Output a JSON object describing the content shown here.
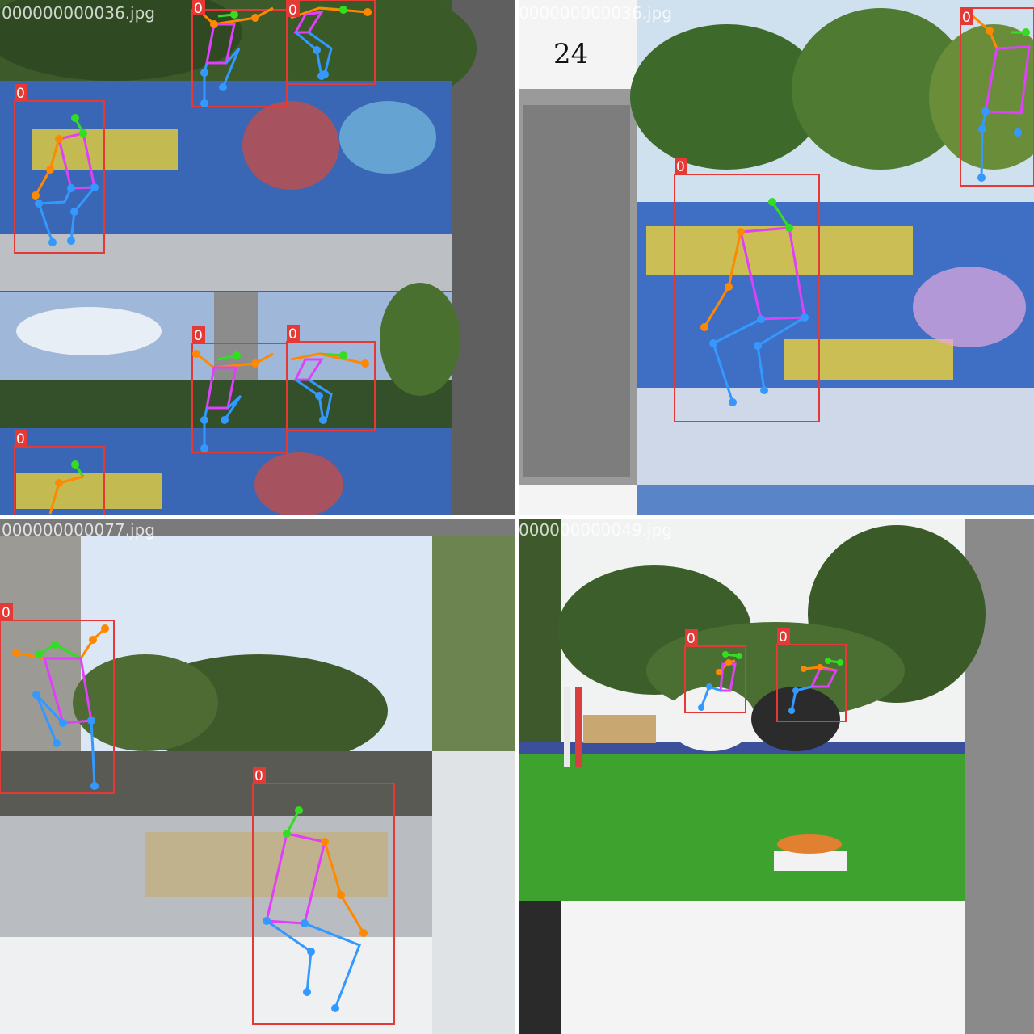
{
  "tiles": [
    {
      "filename": "000000000036.jpg"
    },
    {
      "filename": "000000000036.jpg"
    },
    {
      "filename": "000000000077.jpg"
    },
    {
      "filename": "000000000049.jpg"
    }
  ],
  "box_label": "0",
  "sign_text": "24",
  "colors": {
    "box": "#e53935",
    "label_bg": "#e53935",
    "head": "#33dd22",
    "arm": "#ff8800",
    "torso": "#e040fb",
    "leg": "#3399ff",
    "pad": "#616161"
  }
}
